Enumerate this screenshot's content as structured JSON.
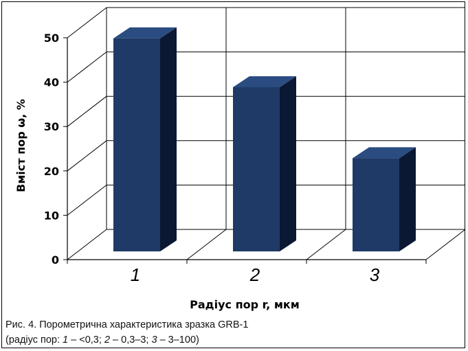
{
  "chart_data": {
    "type": "bar",
    "style": "3d-column",
    "categories": [
      "1",
      "2",
      "3"
    ],
    "values": [
      48,
      37,
      21
    ],
    "ylabel": "Вміст пор ω, %",
    "xlabel": "Радіус пор r, мкм",
    "ylim": [
      0,
      50
    ],
    "yticks": [
      "0",
      "10",
      "20",
      "30",
      "40",
      "50"
    ],
    "grid": true,
    "legend": "none",
    "colors": {
      "front": "#1f3a66",
      "side": "#0b1833",
      "top": "#2a4c80",
      "grid": "#000000"
    }
  },
  "caption": {
    "line1": "Рис. 4. Порометрична характеристика зразка GRB-1",
    "line2_open": "(радіус пор: ",
    "n1": "1",
    "r1": " – <0,3; ",
    "n2": "2",
    "r2": " – 0,3–3; ",
    "n3": "3",
    "r3": " – 3–100)"
  }
}
